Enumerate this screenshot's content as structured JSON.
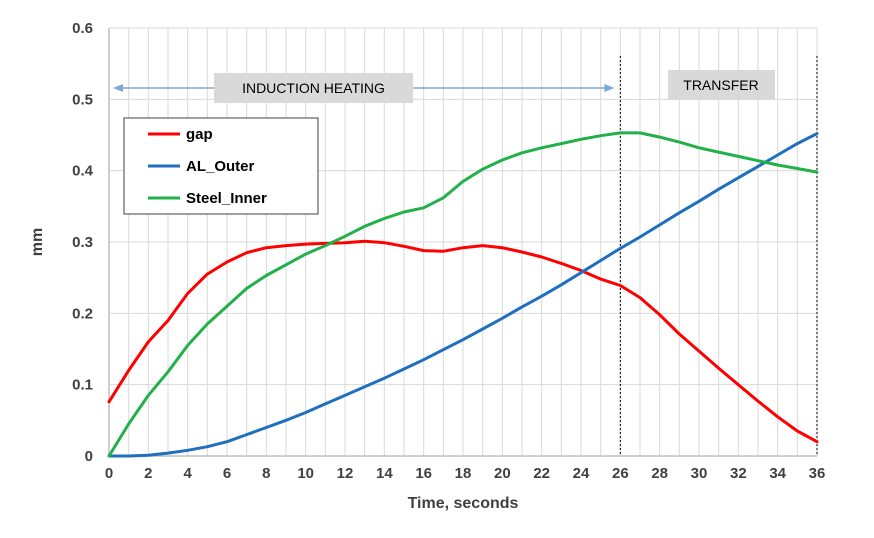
{
  "chart_data": {
    "type": "line",
    "title": "",
    "xlabel": "Time, seconds",
    "ylabel": "mm",
    "xlim": [
      0,
      36
    ],
    "ylim": [
      0,
      0.6
    ],
    "x_ticks": [
      "0",
      "2",
      "4",
      "6",
      "8",
      "10",
      "12",
      "14",
      "16",
      "18",
      "20",
      "22",
      "24",
      "26",
      "28",
      "30",
      "32",
      "34",
      "36"
    ],
    "y_ticks": [
      "0",
      "0.1",
      "0.2",
      "0.3",
      "0.4",
      "0.5",
      "0.6"
    ],
    "grid": true,
    "legend_position": "upper-left",
    "series": [
      {
        "name": "gap",
        "color": "#ff0000",
        "points": [
          [
            0,
            0.076
          ],
          [
            1,
            0.12
          ],
          [
            2,
            0.16
          ],
          [
            3,
            0.19
          ],
          [
            4,
            0.228
          ],
          [
            5,
            0.255
          ],
          [
            6,
            0.272
          ],
          [
            7,
            0.285
          ],
          [
            8,
            0.292
          ],
          [
            9,
            0.295
          ],
          [
            10,
            0.297
          ],
          [
            11,
            0.298
          ],
          [
            12,
            0.299
          ],
          [
            13,
            0.301
          ],
          [
            14,
            0.299
          ],
          [
            15,
            0.294
          ],
          [
            16,
            0.288
          ],
          [
            17,
            0.287
          ],
          [
            18,
            0.292
          ],
          [
            19,
            0.295
          ],
          [
            20,
            0.292
          ],
          [
            21,
            0.286
          ],
          [
            22,
            0.279
          ],
          [
            23,
            0.27
          ],
          [
            24,
            0.26
          ],
          [
            25,
            0.248
          ],
          [
            26,
            0.239
          ],
          [
            27,
            0.222
          ],
          [
            28,
            0.198
          ],
          [
            29,
            0.171
          ],
          [
            30,
            0.147
          ],
          [
            31,
            0.123
          ],
          [
            32,
            0.1
          ],
          [
            33,
            0.077
          ],
          [
            34,
            0.055
          ],
          [
            35,
            0.035
          ],
          [
            36,
            0.02
          ]
        ]
      },
      {
        "name": "AL_Outer",
        "color": "#1f6fc0",
        "points": [
          [
            0,
            0
          ],
          [
            1,
            0
          ],
          [
            2,
            0.001
          ],
          [
            3,
            0.004
          ],
          [
            4,
            0.008
          ],
          [
            5,
            0.013
          ],
          [
            6,
            0.02
          ],
          [
            7,
            0.03
          ],
          [
            8,
            0.04
          ],
          [
            9,
            0.05
          ],
          [
            10,
            0.061
          ],
          [
            11,
            0.073
          ],
          [
            12,
            0.085
          ],
          [
            13,
            0.097
          ],
          [
            14,
            0.109
          ],
          [
            15,
            0.122
          ],
          [
            16,
            0.135
          ],
          [
            17,
            0.149
          ],
          [
            18,
            0.163
          ],
          [
            19,
            0.178
          ],
          [
            20,
            0.193
          ],
          [
            21,
            0.209
          ],
          [
            22,
            0.224
          ],
          [
            23,
            0.24
          ],
          [
            24,
            0.257
          ],
          [
            25,
            0.274
          ],
          [
            26,
            0.291
          ],
          [
            27,
            0.307
          ],
          [
            28,
            0.324
          ],
          [
            29,
            0.341
          ],
          [
            30,
            0.357
          ],
          [
            31,
            0.374
          ],
          [
            32,
            0.39
          ],
          [
            33,
            0.406
          ],
          [
            34,
            0.422
          ],
          [
            35,
            0.438
          ],
          [
            36,
            0.452
          ]
        ]
      },
      {
        "name": "Steel_Inner",
        "color": "#22b04b",
        "points": [
          [
            0,
            0
          ],
          [
            1,
            0.045
          ],
          [
            2,
            0.085
          ],
          [
            3,
            0.118
          ],
          [
            4,
            0.155
          ],
          [
            5,
            0.185
          ],
          [
            6,
            0.21
          ],
          [
            7,
            0.235
          ],
          [
            8,
            0.253
          ],
          [
            9,
            0.268
          ],
          [
            10,
            0.283
          ],
          [
            11,
            0.295
          ],
          [
            12,
            0.308
          ],
          [
            13,
            0.322
          ],
          [
            14,
            0.333
          ],
          [
            15,
            0.342
          ],
          [
            16,
            0.348
          ],
          [
            17,
            0.362
          ],
          [
            18,
            0.385
          ],
          [
            19,
            0.402
          ],
          [
            20,
            0.415
          ],
          [
            21,
            0.425
          ],
          [
            22,
            0.432
          ],
          [
            23,
            0.438
          ],
          [
            24,
            0.444
          ],
          [
            25,
            0.449
          ],
          [
            26,
            0.453
          ],
          [
            27,
            0.453
          ],
          [
            28,
            0.447
          ],
          [
            29,
            0.44
          ],
          [
            30,
            0.432
          ],
          [
            31,
            0.426
          ],
          [
            32,
            0.42
          ],
          [
            33,
            0.414
          ],
          [
            34,
            0.408
          ],
          [
            35,
            0.403
          ],
          [
            36,
            0.398
          ]
        ]
      }
    ],
    "vlines": [
      26,
      36
    ],
    "annotations": [
      {
        "text": "INDUCTION HEATING",
        "arrow_range": [
          0,
          26
        ]
      },
      {
        "text": "TRANSFER"
      }
    ]
  }
}
